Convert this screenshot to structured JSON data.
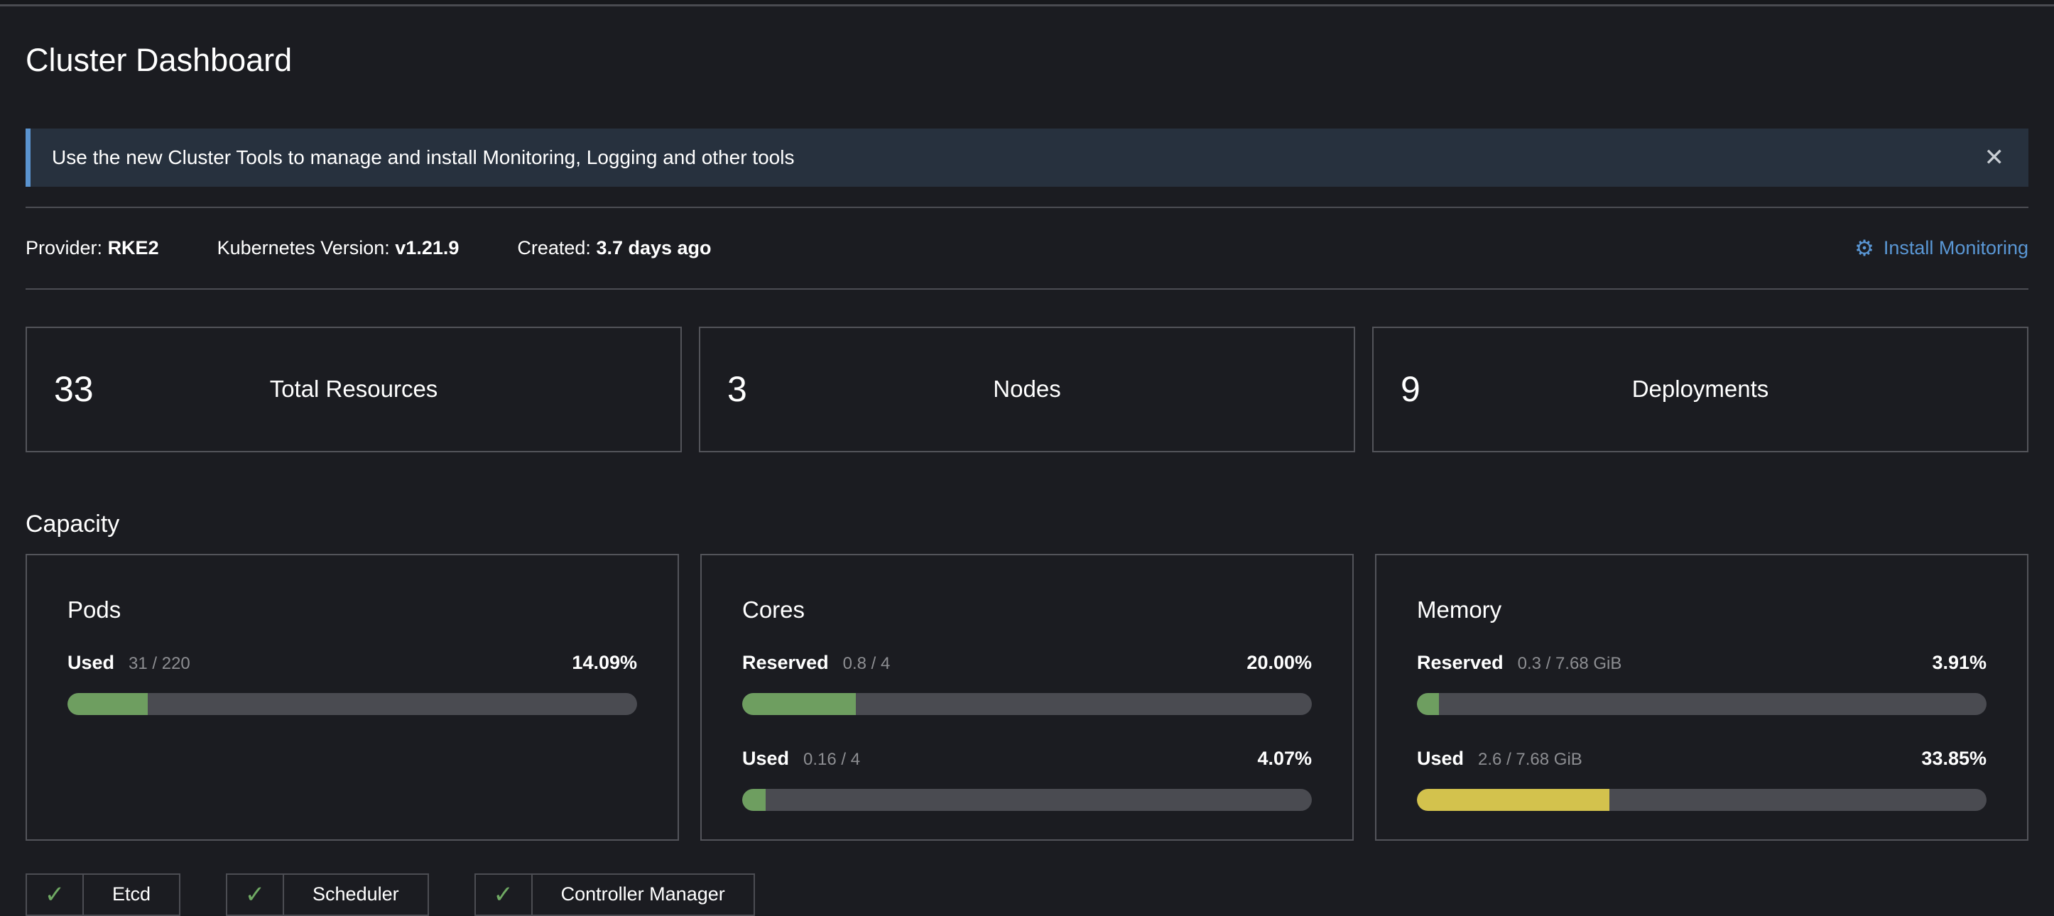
{
  "page": {
    "title": "Cluster Dashboard"
  },
  "banner": {
    "text": "Use the new Cluster Tools to manage and install Monitoring, Logging and other tools",
    "close_glyph": "✕"
  },
  "glance": {
    "provider_label": "Provider:",
    "provider_value": "RKE2",
    "k8s_label": "Kubernetes Version:",
    "k8s_value": "v1.21.9",
    "created_label": "Created:",
    "created_value": "3.7 days ago",
    "install_monitoring": {
      "label": "Install Monitoring",
      "gear_glyph": "⚙"
    }
  },
  "stats": [
    {
      "value": "33",
      "label": "Total Resources"
    },
    {
      "value": "3",
      "label": "Nodes"
    },
    {
      "value": "9",
      "label": "Deployments"
    }
  ],
  "capacity": {
    "heading": "Capacity",
    "cards": [
      {
        "title": "Pods",
        "gauges": [
          {
            "label": "Used",
            "fraction": "31 / 220",
            "percent": "14.09%",
            "percent_value": 14.09,
            "color": "green"
          }
        ]
      },
      {
        "title": "Cores",
        "gauges": [
          {
            "label": "Reserved",
            "fraction": "0.8 / 4",
            "percent": "20.00%",
            "percent_value": 20.0,
            "color": "green"
          },
          {
            "label": "Used",
            "fraction": "0.16 / 4",
            "percent": "4.07%",
            "percent_value": 4.07,
            "color": "green"
          }
        ]
      },
      {
        "title": "Memory",
        "gauges": [
          {
            "label": "Reserved",
            "fraction": "0.3 / 7.68 GiB",
            "percent": "3.91%",
            "percent_value": 3.91,
            "color": "green"
          },
          {
            "label": "Used",
            "fraction": "2.6 / 7.68 GiB",
            "percent": "33.85%",
            "percent_value": 33.85,
            "color": "yellow"
          }
        ]
      }
    ]
  },
  "components": [
    {
      "label": "Etcd",
      "status": "ok",
      "check_glyph": "✓"
    },
    {
      "label": "Scheduler",
      "status": "ok",
      "check_glyph": "✓"
    },
    {
      "label": "Controller Manager",
      "status": "ok",
      "check_glyph": "✓"
    }
  ],
  "colors": {
    "background": "#1b1c21",
    "banner_bg": "#27313e",
    "accent_blue": "#5a93cf",
    "link_blue": "#5a97d5",
    "gauge_green": "#6e9e60",
    "gauge_yellow": "#d3c24d",
    "gauge_track": "#4a4b51",
    "border_gray": "#53545a",
    "check_green": "#6fa963"
  }
}
